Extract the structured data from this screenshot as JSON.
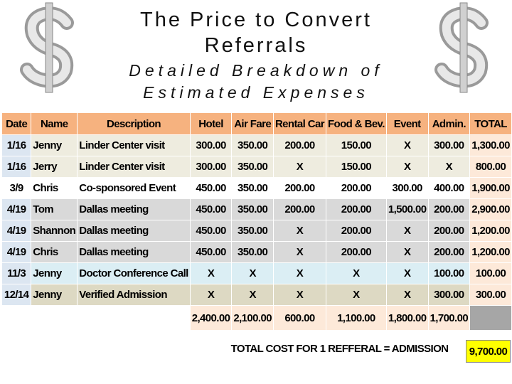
{
  "slide": {
    "title": "The Price to Convert Referrals",
    "subtitle": "Detailed Breakdown of Estimated Expenses"
  },
  "table": {
    "header": [
      "Date",
      "Name",
      "Description",
      "Hotel",
      "Air Fare",
      "Rental Car",
      "Food & Bev.",
      "Event",
      "Admin.",
      "TOTAL"
    ],
    "rows": [
      [
        "1/16",
        "Jenny",
        "Linder Center visit",
        "300.00",
        "350.00",
        "200.00",
        "150.00",
        "X",
        "300.00",
        "1,300.00"
      ],
      [
        "1/16",
        "Jerry",
        "Linder Center visit",
        "300.00",
        "350.00",
        "X",
        "150.00",
        "X",
        "X",
        "800.00"
      ],
      [
        "3/9",
        "Chris",
        "Co-sponsored Event",
        "450.00",
        "350.00",
        "200.00",
        "200.00",
        "300.00",
        "400.00",
        "1,900.00"
      ],
      [
        "4/19",
        "Tom",
        "Dallas meeting",
        "450.00",
        "350.00",
        "200.00",
        "200.00",
        "1,500.00",
        "200.00",
        "2,900.00"
      ],
      [
        "4/19",
        "Shannon",
        "Dallas meeting",
        "450.00",
        "350.00",
        "X",
        "200.00",
        "X",
        "200.00",
        "1,200.00"
      ],
      [
        "4/19",
        "Chris",
        "Dallas meeting",
        "450.00",
        "350.00",
        "X",
        "200.00",
        "X",
        "200.00",
        "1,200.00"
      ],
      [
        "11/3",
        "Jenny",
        "Doctor Conference Call",
        "X",
        "X",
        "X",
        "X",
        "X",
        "100.00",
        "100.00"
      ],
      [
        "12/14",
        "Jenny",
        "Verified Admission",
        "X",
        "X",
        "X",
        "X",
        "X",
        "300.00",
        "300.00"
      ]
    ],
    "column_totals": [
      "2,400.00",
      "2,100.00",
      "600.00",
      "1,100.00",
      "1,800.00",
      "1,700.00"
    ],
    "grand_total_label": "TOTAL COST FOR 1 REFFERAL = ADMISSION",
    "grand_total": "9,700.00"
  }
}
